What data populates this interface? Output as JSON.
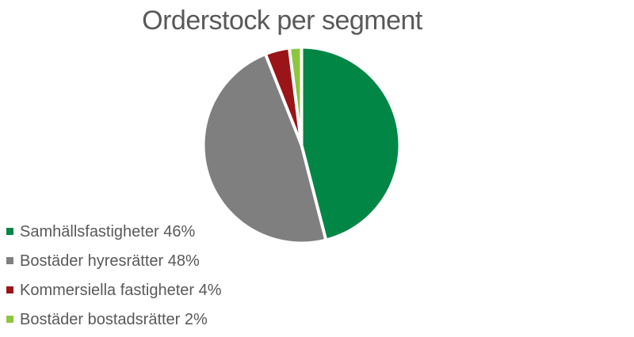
{
  "page": {
    "background_color": "#FFFFFF",
    "text_color": "#595959"
  },
  "chart_data": {
    "type": "pie",
    "title": "Orderstock per segment",
    "start_angle_deg": 0,
    "direction": "clockwise",
    "total_pct": 100,
    "separator_color": "#FFFFFF",
    "separator_width": 4,
    "legend_position": "bottom-left",
    "slices": [
      {
        "label": "Samhällsfastigheter",
        "value_pct": 46,
        "color": "#028646",
        "legend_label": "Samhällsfastigheter 46%"
      },
      {
        "label": "Bostäder hyresrätter",
        "value_pct": 48,
        "color": "#7F7F7F",
        "legend_label": "Bostäder hyresrätter 48%"
      },
      {
        "label": "Kommersiella fastigheter",
        "value_pct": 4,
        "color": "#9A1418",
        "legend_label": "Kommersiella fastigheter 4%"
      },
      {
        "label": "Bostäder bostadsrätter",
        "value_pct": 2,
        "color": "#8DC63F",
        "legend_label": "Bostäder bostadsrätter 2%"
      }
    ]
  }
}
